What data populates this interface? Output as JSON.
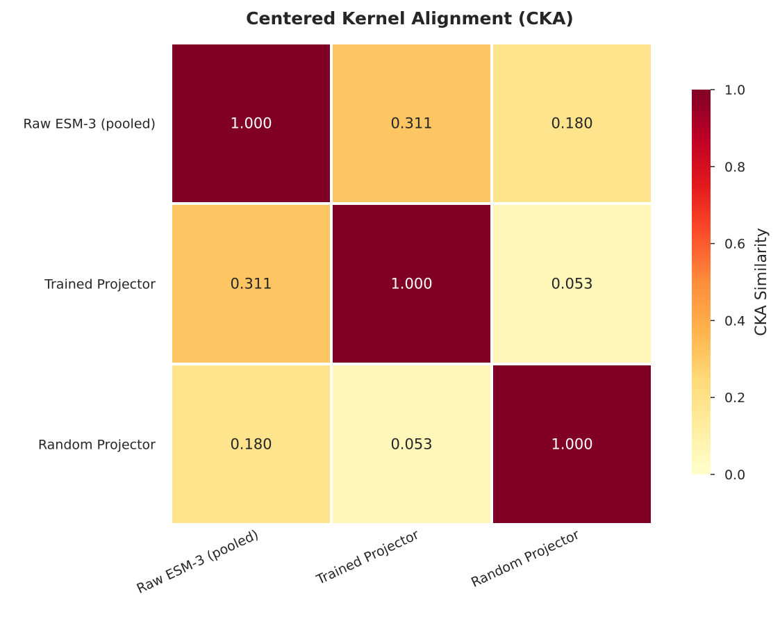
{
  "chart_data": {
    "type": "heatmap",
    "title": "Centered Kernel Alignment (CKA)",
    "row_labels": [
      "Raw ESM-3 (pooled)",
      "Trained Projector",
      "Random Projector"
    ],
    "col_labels": [
      "Raw ESM-3 (pooled)",
      "Trained Projector",
      "Random Projector"
    ],
    "values": [
      [
        1.0,
        0.311,
        0.18
      ],
      [
        0.311,
        1.0,
        0.053
      ],
      [
        0.18,
        0.053,
        1.0
      ]
    ],
    "value_labels": [
      [
        "1.000",
        "0.311",
        "0.180"
      ],
      [
        "0.311",
        "1.000",
        "0.053"
      ],
      [
        "0.180",
        "0.053",
        "1.000"
      ]
    ],
    "colormap": "YlOrRd",
    "colormap_stops": [
      "#ffffcc",
      "#ffeda0",
      "#fed976",
      "#feb24c",
      "#fd8d3c",
      "#fc4e2a",
      "#e31a1c",
      "#bd0026",
      "#800026"
    ],
    "vmin": 0.0,
    "vmax": 1.0,
    "colorbar": {
      "label": "CKA Similarity",
      "ticks": [
        "0.0",
        "0.2",
        "0.4",
        "0.6",
        "0.8",
        "1.0"
      ]
    },
    "grid": false,
    "legend": "colorbar-right"
  }
}
